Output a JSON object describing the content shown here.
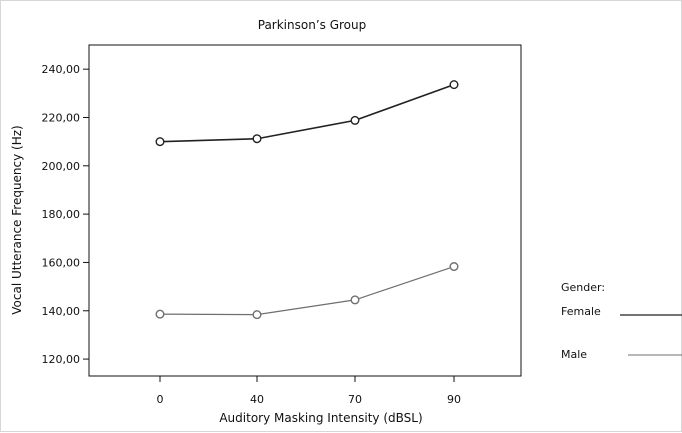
{
  "chart_data": {
    "type": "line",
    "title": "Parkinson’s Group",
    "xlabel": "Auditory Masking Intensity (dBSL)",
    "ylabel": "Vocal Utterance Frequency (Hz)",
    "categories": [
      "0",
      "40",
      "70",
      "90"
    ],
    "ylim": [
      113,
      250
    ],
    "y_ticks": [
      120,
      140,
      160,
      180,
      200,
      220,
      240
    ],
    "y_tick_labels": [
      "120,00",
      "140,00",
      "160,00",
      "180,00",
      "200,00",
      "220,00",
      "240,00"
    ],
    "series": [
      {
        "name": "Female",
        "values": [
          210.0,
          211.2,
          218.8,
          233.6
        ],
        "color": "#222222"
      },
      {
        "name": "Male",
        "values": [
          138.6,
          138.4,
          144.5,
          158.3
        ],
        "color": "#6f6f6f"
      }
    ],
    "legend": {
      "title": "Gender:",
      "entries": [
        "Female",
        "Male"
      ],
      "placement": "right"
    },
    "grid": false
  }
}
